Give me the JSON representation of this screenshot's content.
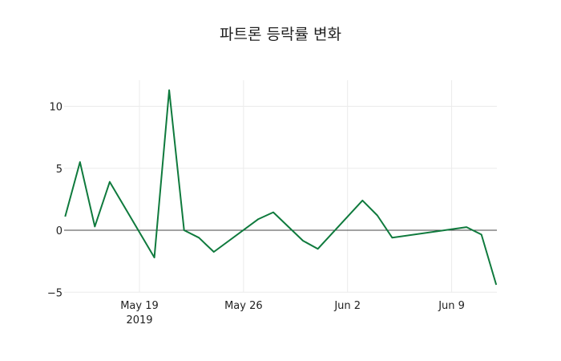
{
  "chart_data": {
    "type": "line",
    "title": "파트론 등락률 변화",
    "xlabel": "",
    "ylabel": "",
    "ylim": [
      -5.5,
      12.2
    ],
    "grid": true,
    "legend": null,
    "x_ticks": [
      {
        "date": "2019-05-19",
        "label": "May 19",
        "sublabel": "2019"
      },
      {
        "date": "2019-05-26",
        "label": "May 26",
        "sublabel": ""
      },
      {
        "date": "2019-06-02",
        "label": "Jun 2",
        "sublabel": ""
      },
      {
        "date": "2019-06-09",
        "label": "Jun 9",
        "sublabel": ""
      }
    ],
    "y_ticks": [
      10,
      5,
      0,
      -5
    ],
    "y_tick_labels": [
      "10",
      "5",
      "0",
      "−5"
    ],
    "series": [
      {
        "name": "등락률",
        "color": "#0f7a3d",
        "x": [
          "2019-05-14",
          "2019-05-15",
          "2019-05-16",
          "2019-05-17",
          "2019-05-20",
          "2019-05-21",
          "2019-05-22",
          "2019-05-23",
          "2019-05-24",
          "2019-05-27",
          "2019-05-28",
          "2019-05-30",
          "2019-05-31",
          "2019-06-03",
          "2019-06-04",
          "2019-06-05",
          "2019-06-10",
          "2019-06-11",
          "2019-06-12"
        ],
        "values": [
          1.1,
          5.5,
          0.3,
          3.9,
          -2.2,
          11.3,
          0.0,
          -0.6,
          -1.75,
          0.9,
          1.45,
          -0.85,
          -1.5,
          2.4,
          1.2,
          -0.6,
          0.25,
          -0.35,
          -4.4
        ]
      }
    ]
  }
}
